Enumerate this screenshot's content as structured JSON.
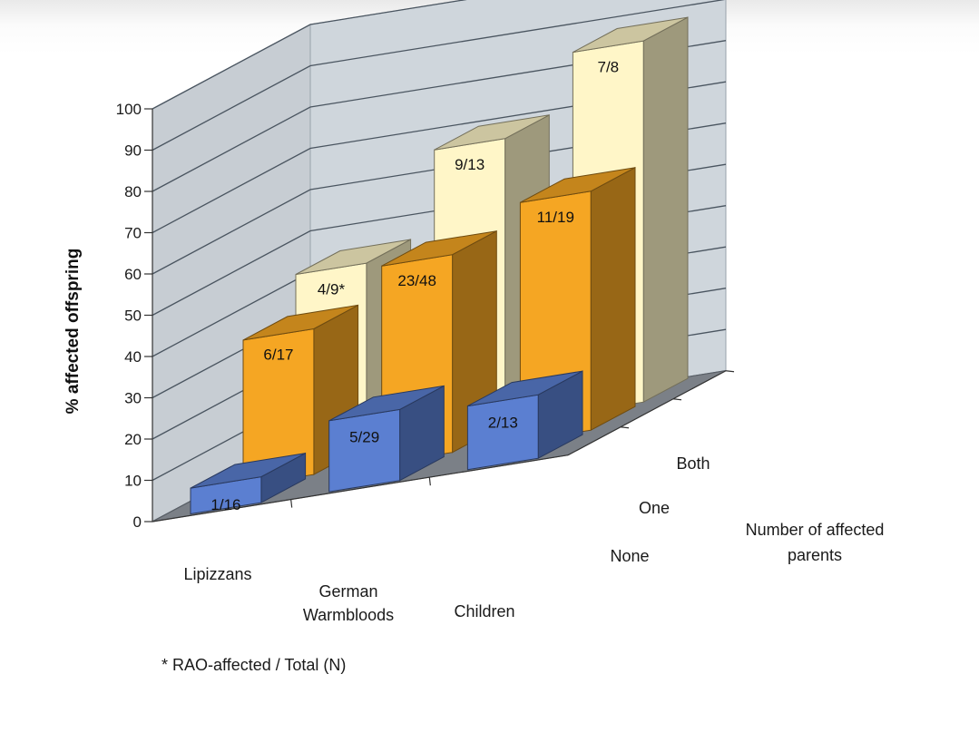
{
  "chart_data": {
    "type": "bar",
    "subtype": "3d-column",
    "categories": [
      "Lipizzans",
      "German Warmbloods",
      "Children"
    ],
    "category_lines": [
      [
        "Lipizzans"
      ],
      [
        "German",
        "Warmbloods"
      ],
      [
        "Children"
      ]
    ],
    "series": [
      {
        "name": "None",
        "values": [
          6.25,
          17.2,
          15.4
        ],
        "labels": [
          "1/16",
          "5/29",
          "2/13"
        ],
        "color": "#5b7fd1"
      },
      {
        "name": "One",
        "values": [
          35.3,
          47.9,
          57.9
        ],
        "labels": [
          "6/17",
          "23/48",
          "11/19"
        ],
        "color": "#f5a623"
      },
      {
        "name": "Both",
        "values": [
          44.4,
          69.2,
          87.5
        ],
        "labels": [
          "4/9*",
          "9/13",
          "7/8"
        ],
        "color": "#fff6c8"
      }
    ],
    "ylabel": "% affected offspring",
    "depth_axis_label_lines": [
      "Number of affected",
      "parents"
    ],
    "ylim": [
      0,
      100
    ],
    "yticks": [
      0,
      10,
      20,
      30,
      40,
      50,
      60,
      70,
      80,
      90,
      100
    ],
    "grid": true,
    "footnote": "* RAO-affected / Total (N)",
    "colors": {
      "wall": "#cfd6dc",
      "floor": "#7b8087",
      "grid": "#4a5560"
    }
  }
}
